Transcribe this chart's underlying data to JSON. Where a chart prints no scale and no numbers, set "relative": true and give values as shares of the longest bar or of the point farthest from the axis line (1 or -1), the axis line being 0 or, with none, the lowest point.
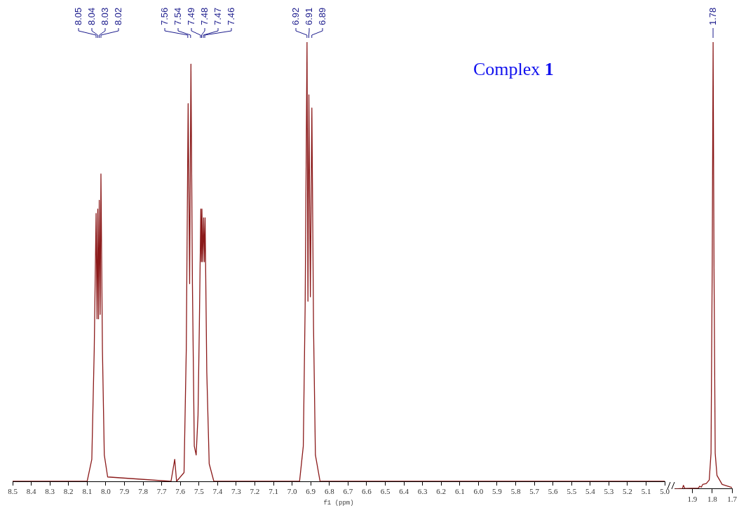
{
  "chart_data": [
    {
      "type": "line",
      "title": "Complex 1",
      "xlabel": "f1 (ppm)",
      "relative": true,
      "color": "#8b1a1a",
      "x": [
        8.5,
        8.1,
        8.075,
        8.062,
        8.052,
        8.047,
        8.043,
        8.039,
        8.035,
        8.03,
        8.026,
        8.018,
        8.008,
        7.99,
        7.65,
        7.63,
        7.62,
        7.58,
        7.568,
        7.558,
        7.55,
        7.543,
        7.535,
        7.525,
        7.515,
        7.505,
        7.498,
        7.49,
        7.487,
        7.484,
        7.48,
        7.475,
        7.471,
        7.467,
        7.458,
        7.445,
        7.42,
        6.96,
        6.94,
        6.93,
        6.92,
        6.915,
        6.91,
        6.902,
        6.894,
        6.885,
        6.875,
        6.85,
        5.0
      ],
      "values": [
        0,
        0,
        0.05,
        0.3,
        0.61,
        0.37,
        0.62,
        0.37,
        0.64,
        0.38,
        0.7,
        0.3,
        0.06,
        0.01,
        0,
        0.05,
        0,
        0.02,
        0.3,
        0.86,
        0.45,
        0.95,
        0.45,
        0.08,
        0.06,
        0.15,
        0.35,
        0.62,
        0.5,
        0.62,
        0.5,
        0.6,
        0.5,
        0.6,
        0.25,
        0.04,
        0,
        0,
        0.08,
        0.4,
        1,
        0.41,
        0.88,
        0.42,
        0.85,
        0.35,
        0.06,
        0,
        0
      ],
      "xlim": [
        8.5,
        5.0
      ],
      "xticks": [
        8.5,
        8.4,
        8.3,
        8.2,
        8.1,
        {
          "value": 8.0,
          "label": "8.0"
        },
        7.9,
        7.8,
        7.7,
        7.6,
        7.5,
        7.4,
        7.3,
        7.2,
        7.1,
        {
          "value": 7.0,
          "label": "7.0"
        },
        6.9,
        6.8,
        6.7,
        6.6,
        6.5,
        6.4,
        6.3,
        6.2,
        6.1,
        {
          "value": 6.0,
          "label": "6.0"
        },
        5.9,
        5.8,
        5.7,
        5.6,
        5.5,
        5.4,
        5.3,
        5.2,
        5.1,
        {
          "value": 5.0,
          "label": "5.0"
        }
      ],
      "annotations": [
        {
          "text": "8.05",
          "x": 8.052
        },
        {
          "text": "8.04",
          "x": 8.043
        },
        {
          "text": "8.03",
          "x": 8.035
        },
        {
          "text": "8.02",
          "x": 8.026
        },
        {
          "text": "7.56",
          "x": 7.558
        },
        {
          "text": "7.54",
          "x": 7.543
        },
        {
          "text": "7.49",
          "x": 7.49
        },
        {
          "text": "7.48",
          "x": 7.484
        },
        {
          "text": "7.47",
          "x": 7.475
        },
        {
          "text": "7.46",
          "x": 7.467
        },
        {
          "text": "6.92",
          "x": 6.92
        },
        {
          "text": "6.91",
          "x": 6.91
        },
        {
          "text": "6.89",
          "x": 6.894
        }
      ]
    },
    {
      "type": "line",
      "relative": true,
      "color": "#8b1a1a",
      "x": [
        1.99,
        1.95,
        1.945,
        1.938,
        1.87,
        1.863,
        1.855,
        1.848,
        1.83,
        1.815,
        1.806,
        1.8,
        1.7955,
        1.791,
        1.785,
        1.776,
        1.75,
        1.7
      ],
      "values": [
        0,
        0.001,
        0.008,
        0.001,
        0.002,
        0.006,
        0.004,
        0.01,
        0.012,
        0.02,
        0.08,
        0.5,
        1,
        0.5,
        0.08,
        0.03,
        0.01,
        0.003
      ],
      "xlim": [
        1.99,
        1.7
      ],
      "xticks": [
        1.9,
        1.8,
        1.7
      ],
      "annotations": [
        {
          "text": "1.78",
          "x": 1.7955
        }
      ]
    }
  ]
}
